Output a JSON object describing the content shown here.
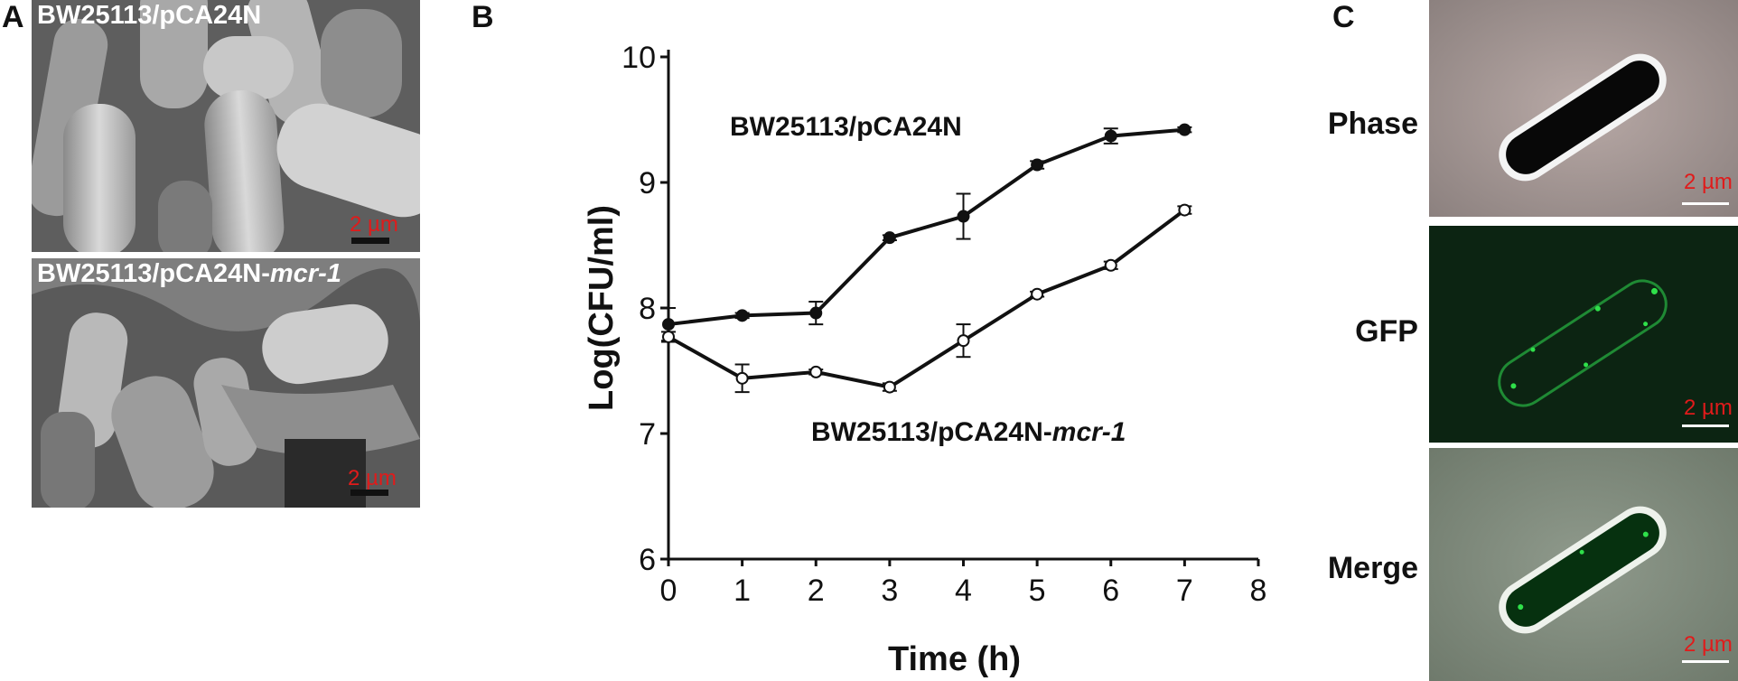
{
  "panels": {
    "a": {
      "letter": "A",
      "top_label": "BW25113/pCA24N",
      "bottom_label_prefix": "BW25113/pCA24N-",
      "bottom_label_italic": "mcr-1",
      "scale_top": "2 µm",
      "scale_bottom": "2 µm"
    },
    "b": {
      "letter": "B"
    },
    "c": {
      "letter": "C",
      "rows": [
        {
          "label": "Phase",
          "scale": "2 µm"
        },
        {
          "label": "GFP",
          "scale": "2 µm"
        },
        {
          "label": "Merge",
          "scale": "2 µm"
        }
      ]
    }
  },
  "chart_data": {
    "type": "line",
    "xlabel": "Time (h)",
    "ylabel": "Log(CFU/ml)",
    "xlim": [
      0,
      8
    ],
    "ylim": [
      6,
      10
    ],
    "xticks": [
      "0",
      "1",
      "2",
      "3",
      "4",
      "5",
      "6",
      "7",
      "8"
    ],
    "yticks": [
      "6",
      "7",
      "8",
      "9",
      "10"
    ],
    "grid": false,
    "series": [
      {
        "name": "BW25113/pCA24N",
        "marker": "filled-circle",
        "x": [
          0,
          1,
          2,
          3,
          4,
          5,
          6,
          7
        ],
        "y": [
          7.87,
          7.94,
          7.96,
          8.56,
          8.73,
          9.14,
          9.37,
          9.42
        ],
        "err": [
          0.13,
          0.02,
          0.09,
          0.02,
          0.18,
          0.03,
          0.06,
          0.02
        ]
      },
      {
        "name": "BW25113/pCA24N-mcr-1",
        "label_prefix": "BW25113/pCA24N-",
        "label_italic": "mcr-1",
        "marker": "open-circle",
        "x": [
          0,
          1,
          2,
          3,
          4,
          5,
          6,
          7
        ],
        "y": [
          7.77,
          7.44,
          7.49,
          7.37,
          7.74,
          8.11,
          8.34,
          8.78
        ],
        "err": [
          0.04,
          0.11,
          0.02,
          0.03,
          0.13,
          0.02,
          0.03,
          0.03
        ]
      }
    ]
  },
  "colors": {
    "scale_text": "#e01b1b",
    "line": "#111111",
    "gfp": "#2fe04a"
  }
}
